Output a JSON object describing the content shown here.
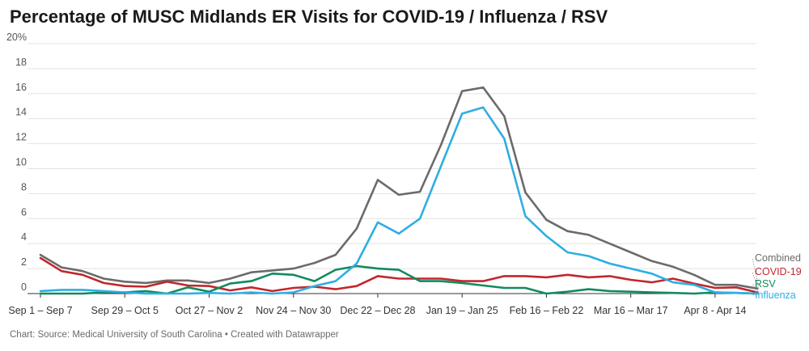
{
  "header": {
    "title": "Percentage of MUSC Midlands ER Visits for COVID-19 / Influenza / RSV"
  },
  "footer": {
    "text": "Chart: Source: Medical University of South Carolina • Created with Datawrapper"
  },
  "chart_data": {
    "type": "line",
    "title": "Percentage of MUSC Midlands ER Visits for COVID-19 / Influenza / RSV",
    "ylim": [
      0,
      20
    ],
    "y_ticks": [
      "0",
      "2",
      "4",
      "6",
      "8",
      "10",
      "12",
      "14",
      "16",
      "18",
      "20%"
    ],
    "x_tick_labels": [
      "Sep 1 – Sep 7",
      "Sep 29 – Oct 5",
      "Oct 27 – Nov 2",
      "Nov 24 – Nov 30",
      "Dec 22 – Dec 28",
      "Jan 19 – Jan 25",
      "Feb 16 – Feb 22",
      "Mar 16 – Mar 17",
      "Apr 8 - Apr 14"
    ],
    "x_tick_weeks": [
      0,
      4,
      8,
      12,
      16,
      20,
      24,
      28,
      32
    ],
    "grid": true,
    "legend": "inline-right",
    "series": [
      {
        "name": "Combined",
        "color": "#6b6b6b",
        "values": [
          3.1,
          2.1,
          1.8,
          1.2,
          0.95,
          0.85,
          1.05,
          1.05,
          0.85,
          1.2,
          1.7,
          1.85,
          2.0,
          2.45,
          3.1,
          5.2,
          9.1,
          7.9,
          8.15,
          11.9,
          16.2,
          16.5,
          14.2,
          8.1,
          5.9,
          5.0,
          4.7,
          4.0,
          3.3,
          2.6,
          2.15,
          1.5,
          0.7,
          0.7,
          0.4
        ]
      },
      {
        "name": "COVID-19",
        "color": "#c0282d",
        "values": [
          2.85,
          1.8,
          1.5,
          0.85,
          0.6,
          0.55,
          0.95,
          0.65,
          0.6,
          0.25,
          0.5,
          0.2,
          0.45,
          0.55,
          0.35,
          0.6,
          1.4,
          1.2,
          1.2,
          1.2,
          1.0,
          1.0,
          1.4,
          1.4,
          1.3,
          1.5,
          1.3,
          1.4,
          1.1,
          0.9,
          1.2,
          0.8,
          0.45,
          0.5,
          0.1
        ]
      },
      {
        "name": "RSV",
        "color": "#138a5e",
        "values": [
          0.0,
          0.0,
          0.0,
          0.1,
          0.1,
          0.2,
          0.0,
          0.5,
          0.15,
          0.8,
          1.0,
          1.6,
          1.5,
          1.0,
          1.9,
          2.2,
          2.0,
          1.9,
          1.0,
          1.0,
          0.85,
          0.65,
          0.45,
          0.45,
          0.0,
          0.15,
          0.35,
          0.2,
          0.15,
          0.1,
          0.05,
          0.0,
          0.1,
          0.05,
          0.0
        ]
      },
      {
        "name": "Influenza",
        "color": "#2eaee3",
        "values": [
          0.2,
          0.3,
          0.3,
          0.2,
          0.1,
          0.0,
          0.0,
          0.0,
          0.05,
          0.0,
          0.1,
          0.0,
          0.1,
          0.6,
          1.0,
          2.4,
          5.7,
          4.8,
          6.0,
          10.2,
          14.4,
          14.9,
          12.4,
          6.2,
          4.6,
          3.3,
          3.0,
          2.4,
          2.0,
          1.6,
          0.9,
          0.7,
          0.1,
          0.05,
          0.0
        ]
      }
    ]
  }
}
